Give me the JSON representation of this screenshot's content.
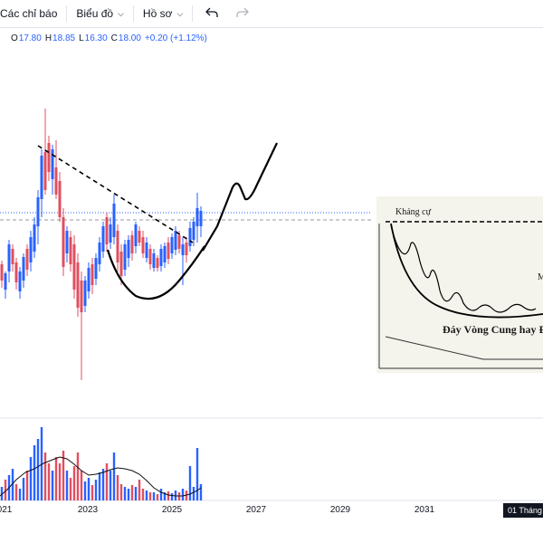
{
  "toolbar": {
    "indicators_label": "Các chỉ báo",
    "chart_label": "Biểu đồ",
    "profile_label": "Hồ sơ"
  },
  "ohlc": {
    "open_key": "O",
    "open": "17.80",
    "high_key": "H",
    "high": "18.85",
    "low_key": "L",
    "low": "16.30",
    "close_key": "C",
    "close": "18.00",
    "change": "+0.20 (+1.12%)"
  },
  "time_axis": {
    "labels": [
      "021",
      "2023",
      "2025",
      "2027",
      "2029",
      "2031"
    ],
    "crosshair_label": "01 Tháng"
  },
  "inset": {
    "resistance_label": "Kháng cự",
    "pattern_label": "Đáy Vòng Cung hay Đá",
    "edge_letter": "M"
  },
  "colors": {
    "up": "#2962ff",
    "down": "#e04f5f",
    "accent": "#2962ff",
    "volume_ma": "#000000"
  },
  "icons": {
    "undo": "undo-icon",
    "redo": "redo-icon",
    "dropdown": "chevron-down-icon"
  }
}
